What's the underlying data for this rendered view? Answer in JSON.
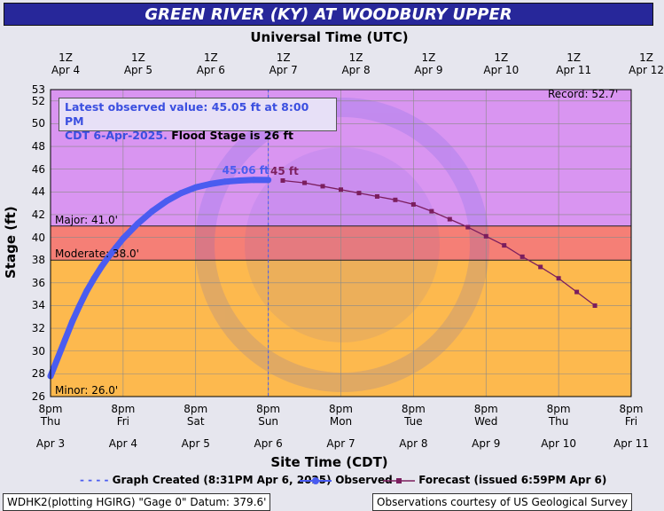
{
  "header": {
    "title": "GREEN RIVER (KY) AT WOODBURY UPPER"
  },
  "chart_data": {
    "type": "line",
    "title": "GREEN RIVER (KY) AT WOODBURY UPPER",
    "top_axis_title": "Universal Time (UTC)",
    "top_ticks": [
      {
        "hour": "1Z",
        "date": "Apr 4"
      },
      {
        "hour": "1Z",
        "date": "Apr 5"
      },
      {
        "hour": "1Z",
        "date": "Apr 6"
      },
      {
        "hour": "1Z",
        "date": "Apr 7"
      },
      {
        "hour": "1Z",
        "date": "Apr 8"
      },
      {
        "hour": "1Z",
        "date": "Apr 9"
      },
      {
        "hour": "1Z",
        "date": "Apr 10"
      },
      {
        "hour": "1Z",
        "date": "Apr 11"
      },
      {
        "hour": "1Z",
        "date": "Apr 12"
      }
    ],
    "xlabel": "Site Time (CDT)",
    "bottom_ticks": [
      {
        "time": "8pm",
        "day": "Thu",
        "date": "Apr 3"
      },
      {
        "time": "8pm",
        "day": "Fri",
        "date": "Apr 4"
      },
      {
        "time": "8pm",
        "day": "Sat",
        "date": "Apr 5"
      },
      {
        "time": "8pm",
        "day": "Sun",
        "date": "Apr 6"
      },
      {
        "time": "8pm",
        "day": "Mon",
        "date": "Apr 7"
      },
      {
        "time": "8pm",
        "day": "Tue",
        "date": "Apr 8"
      },
      {
        "time": "8pm",
        "day": "Wed",
        "date": "Apr 9"
      },
      {
        "time": "8pm",
        "day": "Thu",
        "date": "Apr 10"
      },
      {
        "time": "8pm",
        "day": "Fri",
        "date": "Apr 11"
      }
    ],
    "ylabel": "Stage (ft)",
    "ylim": [
      26,
      53
    ],
    "y_ticks": [
      26,
      28,
      30,
      32,
      34,
      36,
      38,
      40,
      42,
      44,
      46,
      48,
      50,
      52,
      53
    ],
    "xlim_days": [
      0,
      8
    ],
    "flood_categories": [
      {
        "label": "Minor: 26.0'",
        "value": 26.0,
        "color": "#fdb94e"
      },
      {
        "label": "Moderate: 38.0'",
        "value": 38.0,
        "color": "#f57f76"
      },
      {
        "label": "Major: 41.0'",
        "value": 41.0,
        "color": "#d995f1"
      }
    ],
    "record": {
      "label": "Record: 52.7'",
      "value": 52.7
    },
    "graph_created_day": 3.0,
    "info_text": {
      "line1": "Latest observed value: 45.05 ft at 8:00 PM",
      "line2_blue": "CDT 6-Apr-2025.",
      "line2_black": "Flood Stage is 26 ft"
    },
    "observed_label": "45.06 ft",
    "forecast_label": "45 ft",
    "series": [
      {
        "name": "Observed",
        "color": "#4a5cf0",
        "x_days": [
          0,
          0.1,
          0.2,
          0.3,
          0.4,
          0.5,
          0.6,
          0.7,
          0.8,
          0.9,
          1.0,
          1.2,
          1.4,
          1.6,
          1.8,
          2.0,
          2.2,
          2.4,
          2.6,
          2.8,
          3.0
        ],
        "y": [
          27.8,
          29.4,
          31.0,
          32.6,
          34.0,
          35.3,
          36.4,
          37.4,
          38.3,
          39.1,
          39.9,
          41.2,
          42.3,
          43.2,
          43.9,
          44.4,
          44.7,
          44.9,
          45.0,
          45.06,
          45.05
        ]
      },
      {
        "name": "Forecast (issued 6:59PM Apr 6)",
        "color": "#7b1e5e",
        "x_days": [
          3.2,
          3.5,
          3.75,
          4.0,
          4.25,
          4.5,
          4.75,
          5.0,
          5.25,
          5.5,
          5.75,
          6.0,
          6.25,
          6.5,
          6.75,
          7.0,
          7.25,
          7.5
        ],
        "y": [
          45.0,
          44.8,
          44.5,
          44.2,
          43.9,
          43.6,
          43.3,
          42.9,
          42.3,
          41.6,
          40.9,
          40.1,
          39.3,
          38.3,
          37.4,
          36.4,
          35.2,
          34.0
        ]
      }
    ],
    "legend": {
      "created": "Graph Created (8:31PM Apr 6, 2025)",
      "observed": "Observed",
      "forecast": "Forecast (issued 6:59PM Apr 6)"
    }
  },
  "footer": {
    "left": "WDHK2(plotting HGIRG) \"Gage 0\" Datum: 379.6'",
    "right": "Observations courtesy of US Geological Survey"
  }
}
